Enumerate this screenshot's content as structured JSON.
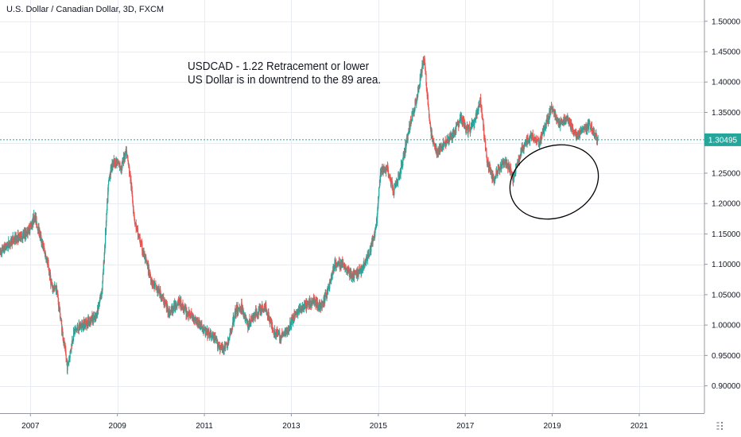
{
  "chart_header": {
    "title": "U.S. Dollar / Canadian Dollar, 3D, FXCM"
  },
  "annotation": {
    "line1": "USDCAD - 1.22 Retracement or lower",
    "line2": "US Dollar is in downtrend to the 89 area."
  },
  "colors": {
    "up": "#26a69a",
    "down": "#ef5350",
    "last_price_line": "#26a69a",
    "grid": "#e9ecf2",
    "axis_text": "#131722",
    "ellipse_stroke": "#000000"
  },
  "chart_data": {
    "type": "candlestick",
    "title": "U.S. Dollar / Canadian Dollar, 3D, FXCM",
    "xlim": [
      2006.3,
      2022.5
    ],
    "ylim": [
      0.855,
      1.535
    ],
    "x_ticks": [
      "2007",
      "2009",
      "2011",
      "2013",
      "2015",
      "2017",
      "2019",
      "2021"
    ],
    "x_tick_values": [
      2007,
      2009,
      2011,
      2013,
      2015,
      2017,
      2019,
      2021
    ],
    "y_ticks": [
      "0.90000",
      "0.95000",
      "1.00000",
      "1.05000",
      "1.10000",
      "1.15000",
      "1.20000",
      "1.25000",
      "1.30000",
      "1.35000",
      "1.40000",
      "1.45000",
      "1.50000"
    ],
    "y_tick_values": [
      0.9,
      0.95,
      1.0,
      1.05,
      1.1,
      1.15,
      1.2,
      1.25,
      1.3,
      1.35,
      1.4,
      1.45,
      1.5
    ],
    "last_price": 1.30495,
    "last_price_label": "1.30495",
    "grid": true,
    "series": [
      {
        "approx_close_path": [
          [
            2006.3,
            1.12
          ],
          [
            2006.6,
            1.14
          ],
          [
            2006.9,
            1.15
          ],
          [
            2007.05,
            1.17
          ],
          [
            2007.1,
            1.18
          ],
          [
            2007.25,
            1.14
          ],
          [
            2007.4,
            1.1
          ],
          [
            2007.5,
            1.06
          ],
          [
            2007.6,
            1.06
          ],
          [
            2007.75,
            0.98
          ],
          [
            2007.85,
            0.93
          ],
          [
            2008.0,
            0.99
          ],
          [
            2008.2,
            1.0
          ],
          [
            2008.4,
            1.01
          ],
          [
            2008.5,
            1.01
          ],
          [
            2008.65,
            1.06
          ],
          [
            2008.8,
            1.24
          ],
          [
            2008.9,
            1.27
          ],
          [
            2009.1,
            1.26
          ],
          [
            2009.2,
            1.29
          ],
          [
            2009.3,
            1.24
          ],
          [
            2009.4,
            1.17
          ],
          [
            2009.55,
            1.13
          ],
          [
            2009.8,
            1.07
          ],
          [
            2010.0,
            1.05
          ],
          [
            2010.2,
            1.02
          ],
          [
            2010.4,
            1.04
          ],
          [
            2010.6,
            1.02
          ],
          [
            2010.8,
            1.01
          ],
          [
            2011.0,
            0.99
          ],
          [
            2011.2,
            0.98
          ],
          [
            2011.4,
            0.96
          ],
          [
            2011.55,
            0.97
          ],
          [
            2011.7,
            1.02
          ],
          [
            2011.85,
            1.03
          ],
          [
            2012.0,
            1.0
          ],
          [
            2012.2,
            1.02
          ],
          [
            2012.4,
            1.03
          ],
          [
            2012.6,
            0.99
          ],
          [
            2012.75,
            0.98
          ],
          [
            2012.9,
            0.99
          ],
          [
            2013.1,
            1.02
          ],
          [
            2013.3,
            1.03
          ],
          [
            2013.5,
            1.04
          ],
          [
            2013.7,
            1.03
          ],
          [
            2013.85,
            1.06
          ],
          [
            2014.0,
            1.1
          ],
          [
            2014.2,
            1.1
          ],
          [
            2014.4,
            1.08
          ],
          [
            2014.6,
            1.09
          ],
          [
            2014.8,
            1.12
          ],
          [
            2014.95,
            1.16
          ],
          [
            2015.05,
            1.25
          ],
          [
            2015.2,
            1.26
          ],
          [
            2015.35,
            1.22
          ],
          [
            2015.5,
            1.25
          ],
          [
            2015.7,
            1.32
          ],
          [
            2015.9,
            1.38
          ],
          [
            2016.05,
            1.44
          ],
          [
            2016.2,
            1.32
          ],
          [
            2016.35,
            1.28
          ],
          [
            2016.5,
            1.3
          ],
          [
            2016.7,
            1.31
          ],
          [
            2016.9,
            1.34
          ],
          [
            2017.05,
            1.32
          ],
          [
            2017.2,
            1.33
          ],
          [
            2017.35,
            1.37
          ],
          [
            2017.5,
            1.27
          ],
          [
            2017.65,
            1.24
          ],
          [
            2017.8,
            1.26
          ],
          [
            2017.95,
            1.27
          ],
          [
            2018.1,
            1.24
          ],
          [
            2018.3,
            1.29
          ],
          [
            2018.5,
            1.31
          ],
          [
            2018.7,
            1.3
          ],
          [
            2018.9,
            1.34
          ],
          [
            2019.0,
            1.36
          ],
          [
            2019.15,
            1.33
          ],
          [
            2019.35,
            1.34
          ],
          [
            2019.55,
            1.31
          ],
          [
            2019.7,
            1.32
          ],
          [
            2019.85,
            1.33
          ],
          [
            2020.0,
            1.31
          ],
          [
            2020.05,
            1.305
          ]
        ]
      }
    ]
  }
}
